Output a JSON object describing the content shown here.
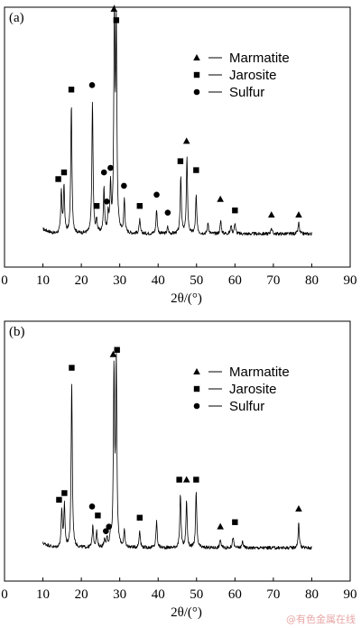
{
  "chart_data": [
    {
      "type": "line",
      "panel_label": "(a)",
      "xlabel": "2θ/(°)",
      "xlim": [
        0,
        90
      ],
      "xticks": [
        0,
        10,
        20,
        30,
        40,
        50,
        60,
        70,
        80,
        90
      ],
      "y_tick_labels": false,
      "legend": {
        "placement": "top-right",
        "entries": [
          {
            "symbol": "triangle",
            "label": "Marmatite"
          },
          {
            "symbol": "square",
            "label": "Jarosite"
          },
          {
            "symbol": "circle",
            "label": "Sulfur"
          }
        ]
      },
      "pattern_range": [
        10,
        80
      ],
      "peaks": [
        {
          "x": 14.8,
          "height": 0.19
        },
        {
          "x": 15.5,
          "height": 0.21
        },
        {
          "x": 17.4,
          "height": 0.58
        },
        {
          "x": 22.9,
          "height": 0.59
        },
        {
          "x": 24.0,
          "height": 0.06
        },
        {
          "x": 25.9,
          "height": 0.2
        },
        {
          "x": 27.0,
          "height": 0.08
        },
        {
          "x": 27.6,
          "height": 0.2
        },
        {
          "x": 28.6,
          "height": 0.93
        },
        {
          "x": 29.1,
          "height": 0.9
        },
        {
          "x": 31.2,
          "height": 0.15
        },
        {
          "x": 35.2,
          "height": 0.06
        },
        {
          "x": 39.6,
          "height": 0.11
        },
        {
          "x": 42.5,
          "height": 0.03
        },
        {
          "x": 45.9,
          "height": 0.26
        },
        {
          "x": 47.5,
          "height": 0.34
        },
        {
          "x": 49.9,
          "height": 0.17
        },
        {
          "x": 53.0,
          "height": 0.05
        },
        {
          "x": 56.3,
          "height": 0.06
        },
        {
          "x": 59.0,
          "height": 0.04
        },
        {
          "x": 60.0,
          "height": 0.05
        },
        {
          "x": 69.5,
          "height": 0.03
        },
        {
          "x": 76.6,
          "height": 0.05
        }
      ],
      "markers": [
        {
          "x": 14.0,
          "symbol": "square",
          "height": 0.24
        },
        {
          "x": 15.5,
          "symbol": "square",
          "height": 0.27
        },
        {
          "x": 17.4,
          "symbol": "square",
          "height": 0.64
        },
        {
          "x": 22.8,
          "symbol": "circle",
          "height": 0.66
        },
        {
          "x": 24.0,
          "symbol": "square",
          "height": 0.12
        },
        {
          "x": 25.9,
          "symbol": "circle",
          "height": 0.27
        },
        {
          "x": 26.6,
          "symbol": "circle",
          "height": 0.14
        },
        {
          "x": 27.6,
          "symbol": "circle",
          "height": 0.29
        },
        {
          "x": 28.5,
          "symbol": "triangle",
          "height": 1.0
        },
        {
          "x": 29.1,
          "symbol": "square",
          "height": 0.95
        },
        {
          "x": 31.1,
          "symbol": "circle",
          "height": 0.21
        },
        {
          "x": 35.2,
          "symbol": "square",
          "height": 0.12
        },
        {
          "x": 39.6,
          "symbol": "circle",
          "height": 0.17
        },
        {
          "x": 42.5,
          "symbol": "circle",
          "height": 0.09
        },
        {
          "x": 45.8,
          "symbol": "square",
          "height": 0.32
        },
        {
          "x": 47.4,
          "symbol": "triangle",
          "height": 0.41
        },
        {
          "x": 49.9,
          "symbol": "square",
          "height": 0.28
        },
        {
          "x": 56.2,
          "symbol": "triangle",
          "height": 0.15
        },
        {
          "x": 60.0,
          "symbol": "square",
          "height": 0.1
        },
        {
          "x": 69.5,
          "symbol": "triangle",
          "height": 0.08
        },
        {
          "x": 76.6,
          "symbol": "triangle",
          "height": 0.08
        }
      ]
    },
    {
      "type": "line",
      "panel_label": "(b)",
      "xlabel": "2θ/(°)",
      "xlim": [
        0,
        90
      ],
      "xticks": [
        0,
        10,
        20,
        30,
        40,
        50,
        60,
        70,
        80,
        90
      ],
      "y_tick_labels": false,
      "legend": {
        "placement": "top-right",
        "entries": [
          {
            "symbol": "triangle",
            "label": "Marmatite"
          },
          {
            "symbol": "square",
            "label": "Jarosite"
          },
          {
            "symbol": "circle",
            "label": "Sulfur"
          }
        ]
      },
      "pattern_range": [
        10,
        80
      ],
      "peaks": [
        {
          "x": 14.9,
          "height": 0.17
        },
        {
          "x": 15.6,
          "height": 0.19
        },
        {
          "x": 17.5,
          "height": 0.74
        },
        {
          "x": 23.0,
          "height": 0.1
        },
        {
          "x": 24.0,
          "height": 0.07
        },
        {
          "x": 26.0,
          "height": 0.03
        },
        {
          "x": 26.7,
          "height": 0.04
        },
        {
          "x": 27.6,
          "height": 0.05
        },
        {
          "x": 28.5,
          "height": 0.78
        },
        {
          "x": 29.1,
          "height": 0.81
        },
        {
          "x": 31.2,
          "height": 0.07
        },
        {
          "x": 35.2,
          "height": 0.08
        },
        {
          "x": 39.6,
          "height": 0.12
        },
        {
          "x": 45.8,
          "height": 0.24
        },
        {
          "x": 47.4,
          "height": 0.21
        },
        {
          "x": 49.9,
          "height": 0.25
        },
        {
          "x": 56.2,
          "height": 0.04
        },
        {
          "x": 59.5,
          "height": 0.05
        },
        {
          "x": 62.0,
          "height": 0.03
        },
        {
          "x": 76.6,
          "height": 0.11
        }
      ],
      "markers": [
        {
          "x": 14.2,
          "symbol": "square",
          "height": 0.21
        },
        {
          "x": 15.6,
          "symbol": "square",
          "height": 0.24
        },
        {
          "x": 17.5,
          "symbol": "square",
          "height": 0.8
        },
        {
          "x": 22.8,
          "symbol": "circle",
          "height": 0.18
        },
        {
          "x": 24.3,
          "symbol": "square",
          "height": 0.14
        },
        {
          "x": 26.4,
          "symbol": "circle",
          "height": 0.07
        },
        {
          "x": 27.2,
          "symbol": "circle",
          "height": 0.09
        },
        {
          "x": 28.3,
          "symbol": "triangle",
          "height": 0.86
        },
        {
          "x": 29.3,
          "symbol": "square",
          "height": 0.88
        },
        {
          "x": 35.2,
          "symbol": "square",
          "height": 0.13
        },
        {
          "x": 45.5,
          "symbol": "square",
          "height": 0.3
        },
        {
          "x": 47.4,
          "symbol": "triangle",
          "height": 0.3
        },
        {
          "x": 49.9,
          "symbol": "square",
          "height": 0.3
        },
        {
          "x": 56.2,
          "symbol": "triangle",
          "height": 0.09
        },
        {
          "x": 60.0,
          "symbol": "square",
          "height": 0.11
        },
        {
          "x": 76.6,
          "symbol": "triangle",
          "height": 0.17
        }
      ]
    }
  ],
  "watermark": "@有色金属在线"
}
